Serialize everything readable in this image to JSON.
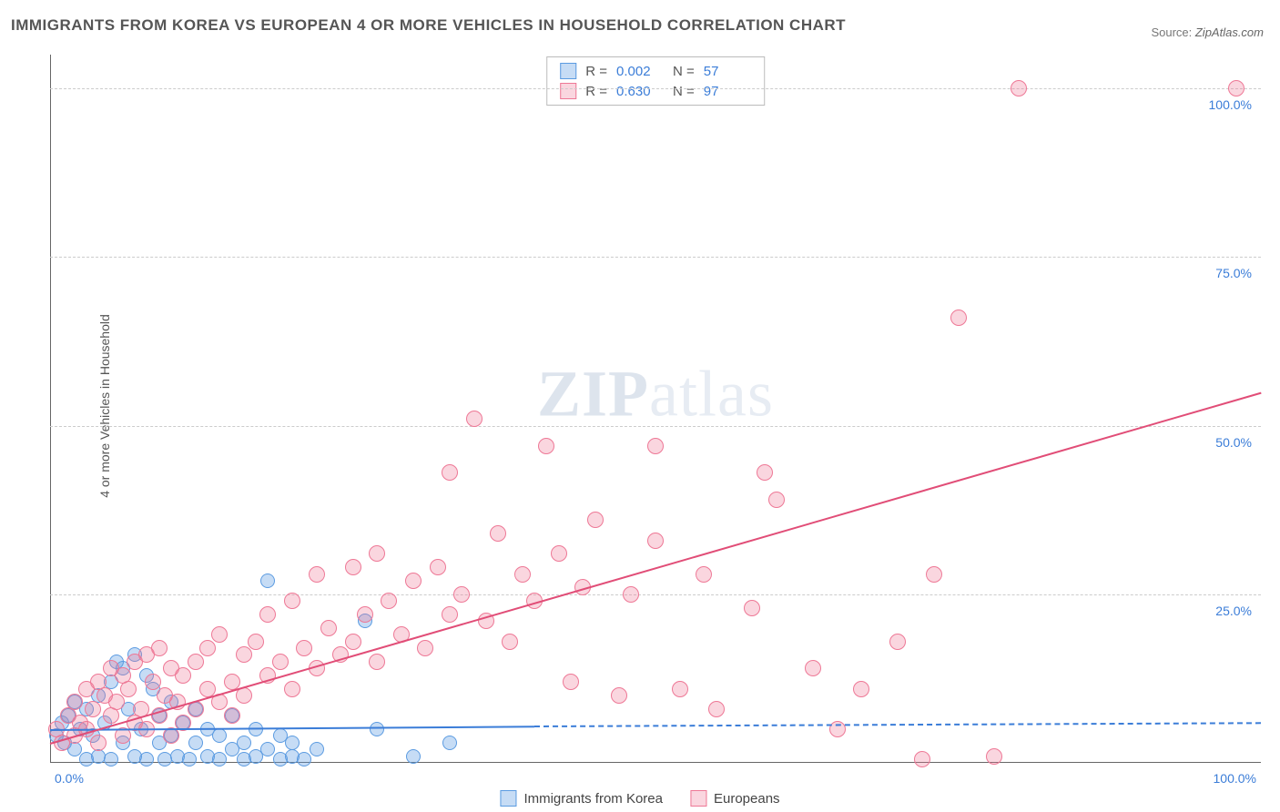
{
  "title": "IMMIGRANTS FROM KOREA VS EUROPEAN 4 OR MORE VEHICLES IN HOUSEHOLD CORRELATION CHART",
  "source_prefix": "Source: ",
  "source_name": "ZipAtlas.com",
  "ylabel": "4 or more Vehicles in Household",
  "watermark_a": "ZIP",
  "watermark_b": "atlas",
  "chart": {
    "type": "scatter",
    "xlim": [
      0,
      100
    ],
    "ylim": [
      0,
      105
    ],
    "ytick_labels": [
      "25.0%",
      "50.0%",
      "75.0%",
      "100.0%"
    ],
    "ytick_vals": [
      25,
      50,
      75,
      100
    ],
    "xtick_left": "0.0%",
    "xtick_right": "100.0%",
    "grid_color": "#cccccc",
    "background": "#ffffff",
    "axis_color": "#666666",
    "tick_label_color": "#3b7dd8"
  },
  "series": [
    {
      "name": "Immigrants from Korea",
      "marker_fill": "rgba(91,155,225,0.35)",
      "marker_stroke": "#5b9be1",
      "marker_r": 8,
      "R_label": "R =",
      "R": "0.002",
      "N_label": "N =",
      "N": "57",
      "trend_color": "#3b7dd8",
      "trend": {
        "x1": 0,
        "y1": 5.0,
        "x2": 40,
        "y2": 5.5
      },
      "trend_dash": {
        "x1": 40,
        "y1": 5.5,
        "x2": 100,
        "y2": 6.0
      },
      "points": [
        [
          0.5,
          4
        ],
        [
          1,
          6
        ],
        [
          1.2,
          3
        ],
        [
          1.5,
          7
        ],
        [
          2,
          2
        ],
        [
          2,
          9
        ],
        [
          2.5,
          5
        ],
        [
          3,
          0.5
        ],
        [
          3,
          8
        ],
        [
          3.5,
          4
        ],
        [
          4,
          1
        ],
        [
          4,
          10
        ],
        [
          4.5,
          6
        ],
        [
          5,
          12
        ],
        [
          5,
          0.5
        ],
        [
          5.5,
          15
        ],
        [
          6,
          3
        ],
        [
          6,
          14
        ],
        [
          6.5,
          8
        ],
        [
          7,
          1
        ],
        [
          7,
          16
        ],
        [
          7.5,
          5
        ],
        [
          8,
          0.5
        ],
        [
          8,
          13
        ],
        [
          8.5,
          11
        ],
        [
          9,
          3
        ],
        [
          9,
          7
        ],
        [
          9.5,
          0.5
        ],
        [
          10,
          9
        ],
        [
          10,
          4
        ],
        [
          10.5,
          1
        ],
        [
          11,
          6
        ],
        [
          11.5,
          0.5
        ],
        [
          12,
          3
        ],
        [
          12,
          8
        ],
        [
          13,
          1
        ],
        [
          13,
          5
        ],
        [
          14,
          0.5
        ],
        [
          14,
          4
        ],
        [
          15,
          2
        ],
        [
          15,
          7
        ],
        [
          16,
          0.5
        ],
        [
          16,
          3
        ],
        [
          17,
          1
        ],
        [
          17,
          5
        ],
        [
          18,
          2
        ],
        [
          18,
          27
        ],
        [
          19,
          0.5
        ],
        [
          19,
          4
        ],
        [
          20,
          1
        ],
        [
          20,
          3
        ],
        [
          21,
          0.5
        ],
        [
          22,
          2
        ],
        [
          26,
          21
        ],
        [
          27,
          5
        ],
        [
          30,
          1
        ],
        [
          33,
          3
        ]
      ]
    },
    {
      "name": "Europeans",
      "marker_fill": "rgba(238,120,150,0.30)",
      "marker_stroke": "#ee7896",
      "marker_r": 9,
      "R_label": "R =",
      "R": "0.630",
      "N_label": "N =",
      "N": "97",
      "trend_color": "#e14d77",
      "trend": {
        "x1": 0,
        "y1": 3.0,
        "x2": 100,
        "y2": 55.0
      },
      "points": [
        [
          0.5,
          5
        ],
        [
          1,
          3
        ],
        [
          1.5,
          7
        ],
        [
          2,
          4
        ],
        [
          2,
          9
        ],
        [
          2.5,
          6
        ],
        [
          3,
          11
        ],
        [
          3,
          5
        ],
        [
          3.5,
          8
        ],
        [
          4,
          3
        ],
        [
          4,
          12
        ],
        [
          4.5,
          10
        ],
        [
          5,
          7
        ],
        [
          5,
          14
        ],
        [
          5.5,
          9
        ],
        [
          6,
          4
        ],
        [
          6,
          13
        ],
        [
          6.5,
          11
        ],
        [
          7,
          6
        ],
        [
          7,
          15
        ],
        [
          7.5,
          8
        ],
        [
          8,
          5
        ],
        [
          8,
          16
        ],
        [
          8.5,
          12
        ],
        [
          9,
          7
        ],
        [
          9,
          17
        ],
        [
          9.5,
          10
        ],
        [
          10,
          4
        ],
        [
          10,
          14
        ],
        [
          10.5,
          9
        ],
        [
          11,
          13
        ],
        [
          11,
          6
        ],
        [
          12,
          15
        ],
        [
          12,
          8
        ],
        [
          13,
          11
        ],
        [
          13,
          17
        ],
        [
          14,
          9
        ],
        [
          14,
          19
        ],
        [
          15,
          12
        ],
        [
          15,
          7
        ],
        [
          16,
          16
        ],
        [
          16,
          10
        ],
        [
          17,
          18
        ],
        [
          18,
          13
        ],
        [
          18,
          22
        ],
        [
          19,
          15
        ],
        [
          20,
          11
        ],
        [
          20,
          24
        ],
        [
          21,
          17
        ],
        [
          22,
          14
        ],
        [
          22,
          28
        ],
        [
          23,
          20
        ],
        [
          24,
          16
        ],
        [
          25,
          29
        ],
        [
          25,
          18
        ],
        [
          26,
          22
        ],
        [
          27,
          31
        ],
        [
          27,
          15
        ],
        [
          28,
          24
        ],
        [
          29,
          19
        ],
        [
          30,
          27
        ],
        [
          31,
          17
        ],
        [
          32,
          29
        ],
        [
          33,
          22
        ],
        [
          33,
          43
        ],
        [
          34,
          25
        ],
        [
          35,
          51
        ],
        [
          36,
          21
        ],
        [
          37,
          34
        ],
        [
          38,
          18
        ],
        [
          39,
          28
        ],
        [
          40,
          24
        ],
        [
          41,
          47
        ],
        [
          42,
          31
        ],
        [
          43,
          12
        ],
        [
          44,
          26
        ],
        [
          45,
          36
        ],
        [
          47,
          10
        ],
        [
          48,
          25
        ],
        [
          50,
          33
        ],
        [
          50,
          47
        ],
        [
          52,
          11
        ],
        [
          54,
          28
        ],
        [
          55,
          8
        ],
        [
          58,
          23
        ],
        [
          59,
          43
        ],
        [
          60,
          39
        ],
        [
          63,
          14
        ],
        [
          65,
          5
        ],
        [
          67,
          11
        ],
        [
          70,
          18
        ],
        [
          72,
          0.5
        ],
        [
          73,
          28
        ],
        [
          75,
          66
        ],
        [
          78,
          1
        ],
        [
          80,
          100
        ],
        [
          98,
          100
        ]
      ]
    }
  ],
  "legend": {
    "item1": "Immigrants from Korea",
    "item2": "Europeans"
  }
}
